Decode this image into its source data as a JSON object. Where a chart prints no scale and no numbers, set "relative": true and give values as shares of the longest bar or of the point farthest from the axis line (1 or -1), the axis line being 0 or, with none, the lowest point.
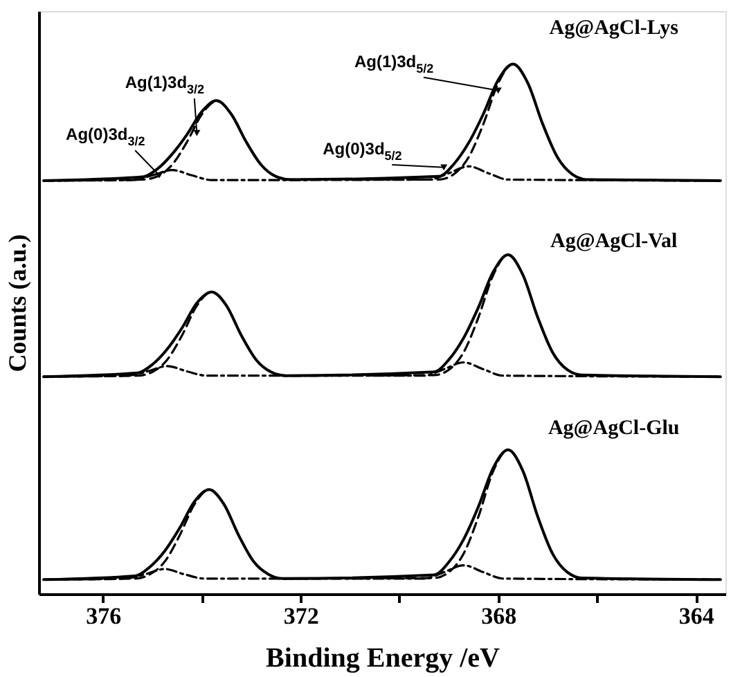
{
  "chart_data": {
    "type": "line",
    "relative": true,
    "xlabel": "Binding Energy /eV",
    "ylabel": "Counts (a.u.)",
    "xlim": [
      377.3,
      363.4
    ],
    "xticks": [
      376,
      {
        "value": 374,
        "label": null
      },
      372,
      {
        "value": 370,
        "label": null
      },
      368,
      {
        "value": 366,
        "label": null
      },
      364
    ],
    "grid": false,
    "marker": "none",
    "tick_labels": "x",
    "series": [
      {
        "color": "#000000",
        "line_style": "solid",
        "x": [
          377.2,
          375.2,
          374.9,
          374.6,
          374.3,
          374.0,
          373.7,
          373.4,
          373.1,
          372.8,
          372.5,
          372.2,
          369.2,
          368.9,
          368.6,
          368.3,
          368.0,
          367.7,
          367.4,
          367.1,
          366.8,
          366.5,
          366.2,
          363.5
        ],
        "values": [
          0.78,
          0.787,
          0.802,
          0.83,
          0.867,
          0.91,
          0.931,
          0.905,
          0.853,
          0.81,
          0.788,
          0.782,
          0.788,
          0.811,
          0.851,
          0.906,
          0.97,
          1.0,
          0.964,
          0.887,
          0.824,
          0.792,
          0.782,
          0.78
        ]
      },
      {
        "color": "#000000",
        "line_style": "dashed",
        "x": [
          377.2,
          375.2,
          374.9,
          374.6,
          374.3,
          374.0,
          373.7,
          373.4,
          373.1,
          372.8,
          372.5,
          372.2,
          369.2,
          368.9,
          368.6,
          368.3,
          368.0,
          367.7,
          367.4,
          367.1,
          366.8,
          366.5,
          366.2,
          363.5
        ],
        "values": [
          0.78,
          0.782,
          0.788,
          0.81,
          0.853,
          0.905,
          0.93,
          0.905,
          0.853,
          0.81,
          0.788,
          0.782,
          0.782,
          0.792,
          0.824,
          0.887,
          0.964,
          1.0,
          0.964,
          0.887,
          0.824,
          0.792,
          0.782,
          0.78
        ]
      },
      {
        "color": "#000000",
        "line_style": "dotted",
        "x": [
          377.2,
          375.4,
          375.0,
          374.6,
          374.2,
          373.8,
          369.4,
          369.0,
          368.6,
          368.2,
          367.8,
          363.5
        ],
        "values": [
          0.78,
          0.781,
          0.79,
          0.8,
          0.79,
          0.781,
          0.782,
          0.794,
          0.807,
          0.794,
          0.782,
          0.78
        ]
      },
      {
        "color": "#000000",
        "line_style": "solid",
        "x": [
          377.2,
          375.3,
          375.0,
          374.7,
          374.4,
          374.1,
          373.8,
          373.5,
          373.2,
          372.9,
          372.6,
          372.3,
          369.3,
          369.0,
          368.7,
          368.4,
          368.1,
          367.8,
          367.5,
          367.2,
          366.9,
          366.6,
          366.3,
          363.5
        ],
        "values": [
          0.41,
          0.417,
          0.433,
          0.462,
          0.502,
          0.549,
          0.57,
          0.544,
          0.488,
          0.442,
          0.419,
          0.412,
          0.419,
          0.442,
          0.483,
          0.541,
          0.608,
          0.64,
          0.602,
          0.522,
          0.456,
          0.423,
          0.413,
          0.41
        ]
      },
      {
        "color": "#000000",
        "line_style": "dashed",
        "x": [
          377.2,
          375.3,
          375.0,
          374.7,
          374.4,
          374.1,
          373.8,
          373.5,
          373.2,
          372.9,
          372.6,
          372.3,
          369.3,
          369.0,
          368.7,
          368.4,
          368.1,
          367.8,
          367.5,
          367.2,
          366.9,
          366.6,
          366.3,
          363.5
        ],
        "values": [
          0.41,
          0.412,
          0.419,
          0.442,
          0.488,
          0.544,
          0.57,
          0.544,
          0.488,
          0.442,
          0.419,
          0.412,
          0.413,
          0.423,
          0.456,
          0.522,
          0.602,
          0.64,
          0.602,
          0.522,
          0.456,
          0.423,
          0.413,
          0.41
        ]
      },
      {
        "color": "#000000",
        "line_style": "dotted",
        "x": [
          377.2,
          375.5,
          375.1,
          374.7,
          374.3,
          373.9,
          369.5,
          369.1,
          368.7,
          368.3,
          367.9,
          363.5
        ],
        "values": [
          0.41,
          0.412,
          0.42,
          0.43,
          0.42,
          0.412,
          0.412,
          0.424,
          0.437,
          0.424,
          0.412,
          0.41
        ]
      },
      {
        "color": "#000000",
        "line_style": "solid",
        "x": [
          377.2,
          375.35,
          375.05,
          374.75,
          374.45,
          374.15,
          373.85,
          373.55,
          373.25,
          372.95,
          372.65,
          372.35,
          369.3,
          369.0,
          368.7,
          368.4,
          368.1,
          367.8,
          367.5,
          367.2,
          366.9,
          366.6,
          366.3,
          363.5
        ],
        "values": [
          0.027,
          0.034,
          0.051,
          0.081,
          0.124,
          0.174,
          0.197,
          0.169,
          0.11,
          0.061,
          0.037,
          0.029,
          0.036,
          0.06,
          0.103,
          0.165,
          0.238,
          0.272,
          0.232,
          0.146,
          0.076,
          0.041,
          0.03,
          0.027
        ]
      },
      {
        "color": "#000000",
        "line_style": "dashed",
        "x": [
          377.2,
          375.35,
          375.05,
          374.75,
          374.45,
          374.15,
          373.85,
          373.55,
          373.25,
          372.95,
          372.65,
          372.35,
          369.3,
          369.0,
          368.7,
          368.4,
          368.1,
          367.8,
          367.5,
          367.2,
          366.9,
          366.6,
          366.3,
          363.5
        ],
        "values": [
          0.027,
          0.029,
          0.037,
          0.061,
          0.11,
          0.169,
          0.197,
          0.169,
          0.11,
          0.061,
          0.037,
          0.029,
          0.03,
          0.041,
          0.076,
          0.146,
          0.232,
          0.272,
          0.232,
          0.146,
          0.076,
          0.041,
          0.03,
          0.027
        ]
      },
      {
        "color": "#000000",
        "line_style": "dotted",
        "x": [
          377.2,
          375.55,
          375.15,
          374.75,
          374.35,
          373.95,
          369.5,
          369.1,
          368.7,
          368.3,
          367.9,
          363.5
        ],
        "values": [
          0.027,
          0.029,
          0.037,
          0.047,
          0.037,
          0.029,
          0.029,
          0.041,
          0.054,
          0.041,
          0.029,
          0.027
        ]
      }
    ],
    "annotations": [
      "Ag@AgCl-Lys",
      "Ag@AgCl-Val",
      "Ag@AgCl-Glu",
      {
        "text": "Ag(1)3d$_{3/2}$",
        "x": 374.1,
        "y": 0.87
      },
      {
        "text": "Ag(0)3d$_{3/2}$",
        "x": 374.86,
        "y": 0.79
      },
      {
        "text": "Ag(1)3d$_{5/2}$",
        "x": 368.0,
        "y": 0.95
      },
      {
        "text": "Ag(0)3d$_{5/2}$",
        "x": 369.1,
        "y": 0.805
      }
    ]
  }
}
